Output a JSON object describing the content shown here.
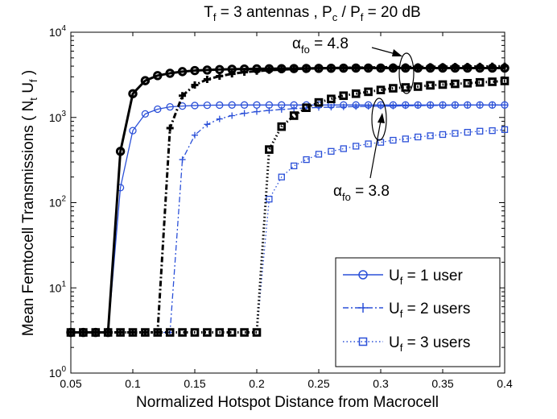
{
  "chart_data": {
    "type": "line",
    "title": {
      "prefix": "T",
      "prefix_sub": "f",
      "mid": " = 3 antennas ,  P",
      "mid_sub": "c",
      "sep": " / P",
      "sep_sub": "f",
      "suffix": " = 20 dB"
    },
    "xlabel": "Normalized Hotspot Distance from Macrocell",
    "ylabel": {
      "pre": "Mean Femtocell Transmissions ( N",
      "sub1": "t",
      "mid": " U",
      "sub2": "f",
      "post": " )"
    },
    "xlim": [
      0.05,
      0.4
    ],
    "ylim_log10": [
      0,
      4
    ],
    "yscale": "log",
    "x_ticks": [
      0.05,
      0.1,
      0.15,
      0.2,
      0.25,
      0.3,
      0.35,
      0.4
    ],
    "x_tick_labels": [
      "0.05",
      "0.1",
      "0.15",
      "0.2",
      "0.25",
      "0.3",
      "0.35",
      "0.4"
    ],
    "y_tick_exponents": [
      0,
      1,
      2,
      3,
      4
    ],
    "y_tick_base": "10",
    "colors": {
      "thin": "#2b50d8",
      "thick": "#000000"
    },
    "legend": {
      "placement": "bottom-right",
      "entries": [
        {
          "key": "u1",
          "pre": "U",
          "sub": "f",
          "post": " = 1 user"
        },
        {
          "key": "u2",
          "pre": "U",
          "sub": "f",
          "post": " = 2 users"
        },
        {
          "key": "u3",
          "pre": "U",
          "sub": "f",
          "post": " = 3 users"
        }
      ]
    },
    "annotations": [
      {
        "key": "a48",
        "symbol": "α",
        "sub": "fo",
        "text": " = 4.8"
      },
      {
        "key": "a38",
        "symbol": "α",
        "sub": "fo",
        "text": " = 3.8"
      }
    ],
    "x": [
      0.05,
      0.06,
      0.07,
      0.08,
      0.09,
      0.1,
      0.11,
      0.12,
      0.13,
      0.14,
      0.15,
      0.16,
      0.17,
      0.18,
      0.19,
      0.2,
      0.21,
      0.22,
      0.23,
      0.24,
      0.25,
      0.26,
      0.27,
      0.28,
      0.29,
      0.3,
      0.31,
      0.32,
      0.33,
      0.34,
      0.35,
      0.36,
      0.37,
      0.38,
      0.39,
      0.4
    ],
    "series": [
      {
        "name": "U_f = 1 user, alpha_fo = 3.8",
        "users": 1,
        "alpha_fo": 3.8,
        "style": "thin",
        "values": [
          3,
          3,
          3,
          3,
          150,
          700,
          1100,
          1250,
          1330,
          1360,
          1380,
          1390,
          1395,
          1400,
          1400,
          1400,
          1400,
          1400,
          1400,
          1400,
          1400,
          1400,
          1400,
          1400,
          1400,
          1400,
          1400,
          1400,
          1400,
          1400,
          1400,
          1400,
          1400,
          1400,
          1400,
          1400
        ]
      },
      {
        "name": "U_f = 2 users, alpha_fo = 3.8",
        "users": 2,
        "alpha_fo": 3.8,
        "style": "thin",
        "values": [
          3,
          3,
          3,
          3,
          3,
          3,
          3,
          3,
          3,
          320,
          620,
          830,
          960,
          1050,
          1120,
          1170,
          1210,
          1240,
          1270,
          1290,
          1310,
          1320,
          1330,
          1340,
          1350,
          1355,
          1360,
          1370,
          1375,
          1380,
          1385,
          1390,
          1395,
          1400,
          1400,
          1400
        ]
      },
      {
        "name": "U_f = 3 users, alpha_fo = 3.8",
        "users": 3,
        "alpha_fo": 3.8,
        "style": "thin",
        "values": [
          3,
          3,
          3,
          3,
          3,
          3,
          3,
          3,
          3,
          3,
          3,
          3,
          3,
          3,
          3,
          3,
          110,
          200,
          270,
          320,
          370,
          400,
          430,
          460,
          490,
          510,
          540,
          560,
          590,
          610,
          630,
          650,
          670,
          690,
          700,
          720
        ]
      },
      {
        "name": "U_f = 1 user, alpha_fo = 4.8",
        "users": 1,
        "alpha_fo": 4.8,
        "style": "thick",
        "values": [
          3,
          3,
          3,
          3,
          400,
          1900,
          2700,
          3100,
          3300,
          3450,
          3550,
          3600,
          3650,
          3680,
          3700,
          3720,
          3730,
          3740,
          3750,
          3760,
          3770,
          3780,
          3790,
          3800,
          3800,
          3800,
          3800,
          3800,
          3800,
          3800,
          3800,
          3800,
          3800,
          3800,
          3800,
          3800
        ]
      },
      {
        "name": "U_f = 2 users, alpha_fo = 4.8",
        "users": 2,
        "alpha_fo": 4.8,
        "style": "thick",
        "values": [
          3,
          3,
          3,
          3,
          3,
          3,
          3,
          3,
          750,
          1800,
          2400,
          2800,
          3050,
          3250,
          3400,
          3500,
          3580,
          3640,
          3700,
          3740,
          3780,
          3800,
          3820,
          3840,
          3860,
          3880,
          3900,
          3910,
          3920,
          3930,
          3940,
          3950,
          3960,
          3970,
          3980,
          3990
        ]
      },
      {
        "name": "U_f = 3 users, alpha_fo = 4.8",
        "users": 3,
        "alpha_fo": 4.8,
        "style": "thick",
        "values": [
          3,
          3,
          3,
          3,
          3,
          3,
          3,
          3,
          3,
          3,
          3,
          3,
          3,
          3,
          3,
          3,
          420,
          780,
          1050,
          1300,
          1500,
          1650,
          1800,
          1900,
          2000,
          2100,
          2200,
          2250,
          2300,
          2380,
          2430,
          2480,
          2520,
          2580,
          2620,
          2680
        ]
      }
    ]
  }
}
